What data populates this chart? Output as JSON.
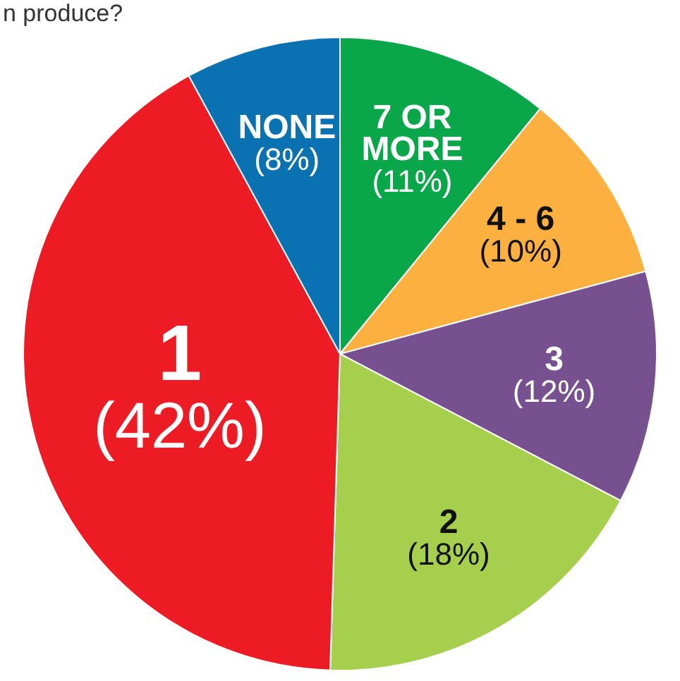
{
  "chart_data": {
    "type": "pie",
    "title": "n produce?",
    "categories": [
      "7 OR MORE",
      "4 - 6",
      "3",
      "2",
      "1",
      "NONE"
    ],
    "values": [
      11,
      10,
      12,
      18,
      42,
      8
    ],
    "colors": [
      "#0aa64a",
      "#fbb040",
      "#77518f",
      "#a5cf4c",
      "#ed1c24",
      "#0a72b0"
    ],
    "value_labels": [
      "(11%)",
      "(10%)",
      "(12%)",
      "(18%)",
      "(42%)",
      "(8%)"
    ],
    "legend": false
  }
}
